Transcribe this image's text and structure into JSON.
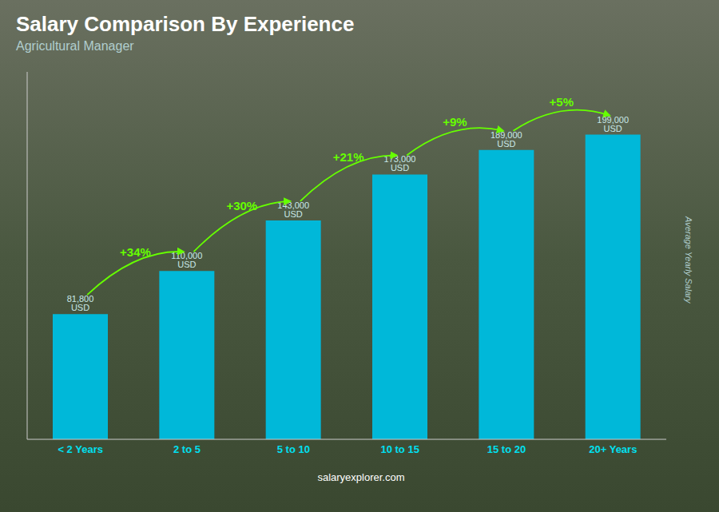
{
  "chart_data": {
    "type": "bar",
    "title": "Salary Comparison By Experience",
    "subtitle": "Agricultural Manager",
    "ylabel": "Average Yearly Salary",
    "footer": "salaryexplorer.com",
    "categories": [
      "< 2 Years",
      "2 to 5",
      "5 to 10",
      "10 to 15",
      "15 to 20",
      "20+ Years"
    ],
    "values": [
      81800,
      110000,
      143000,
      173000,
      189000,
      199000
    ],
    "value_labels": [
      "81,800 USD",
      "110,000 USD",
      "143,000 USD",
      "173,000 USD",
      "189,000 USD",
      "199,000 USD"
    ],
    "data_labels": true,
    "annotations": [
      "+34%",
      "+30%",
      "+21%",
      "+9%",
      "+5%"
    ],
    "color": "#00b8d9",
    "ylim": [
      0,
      240000
    ],
    "tick_labels": "x",
    "grid": false
  }
}
